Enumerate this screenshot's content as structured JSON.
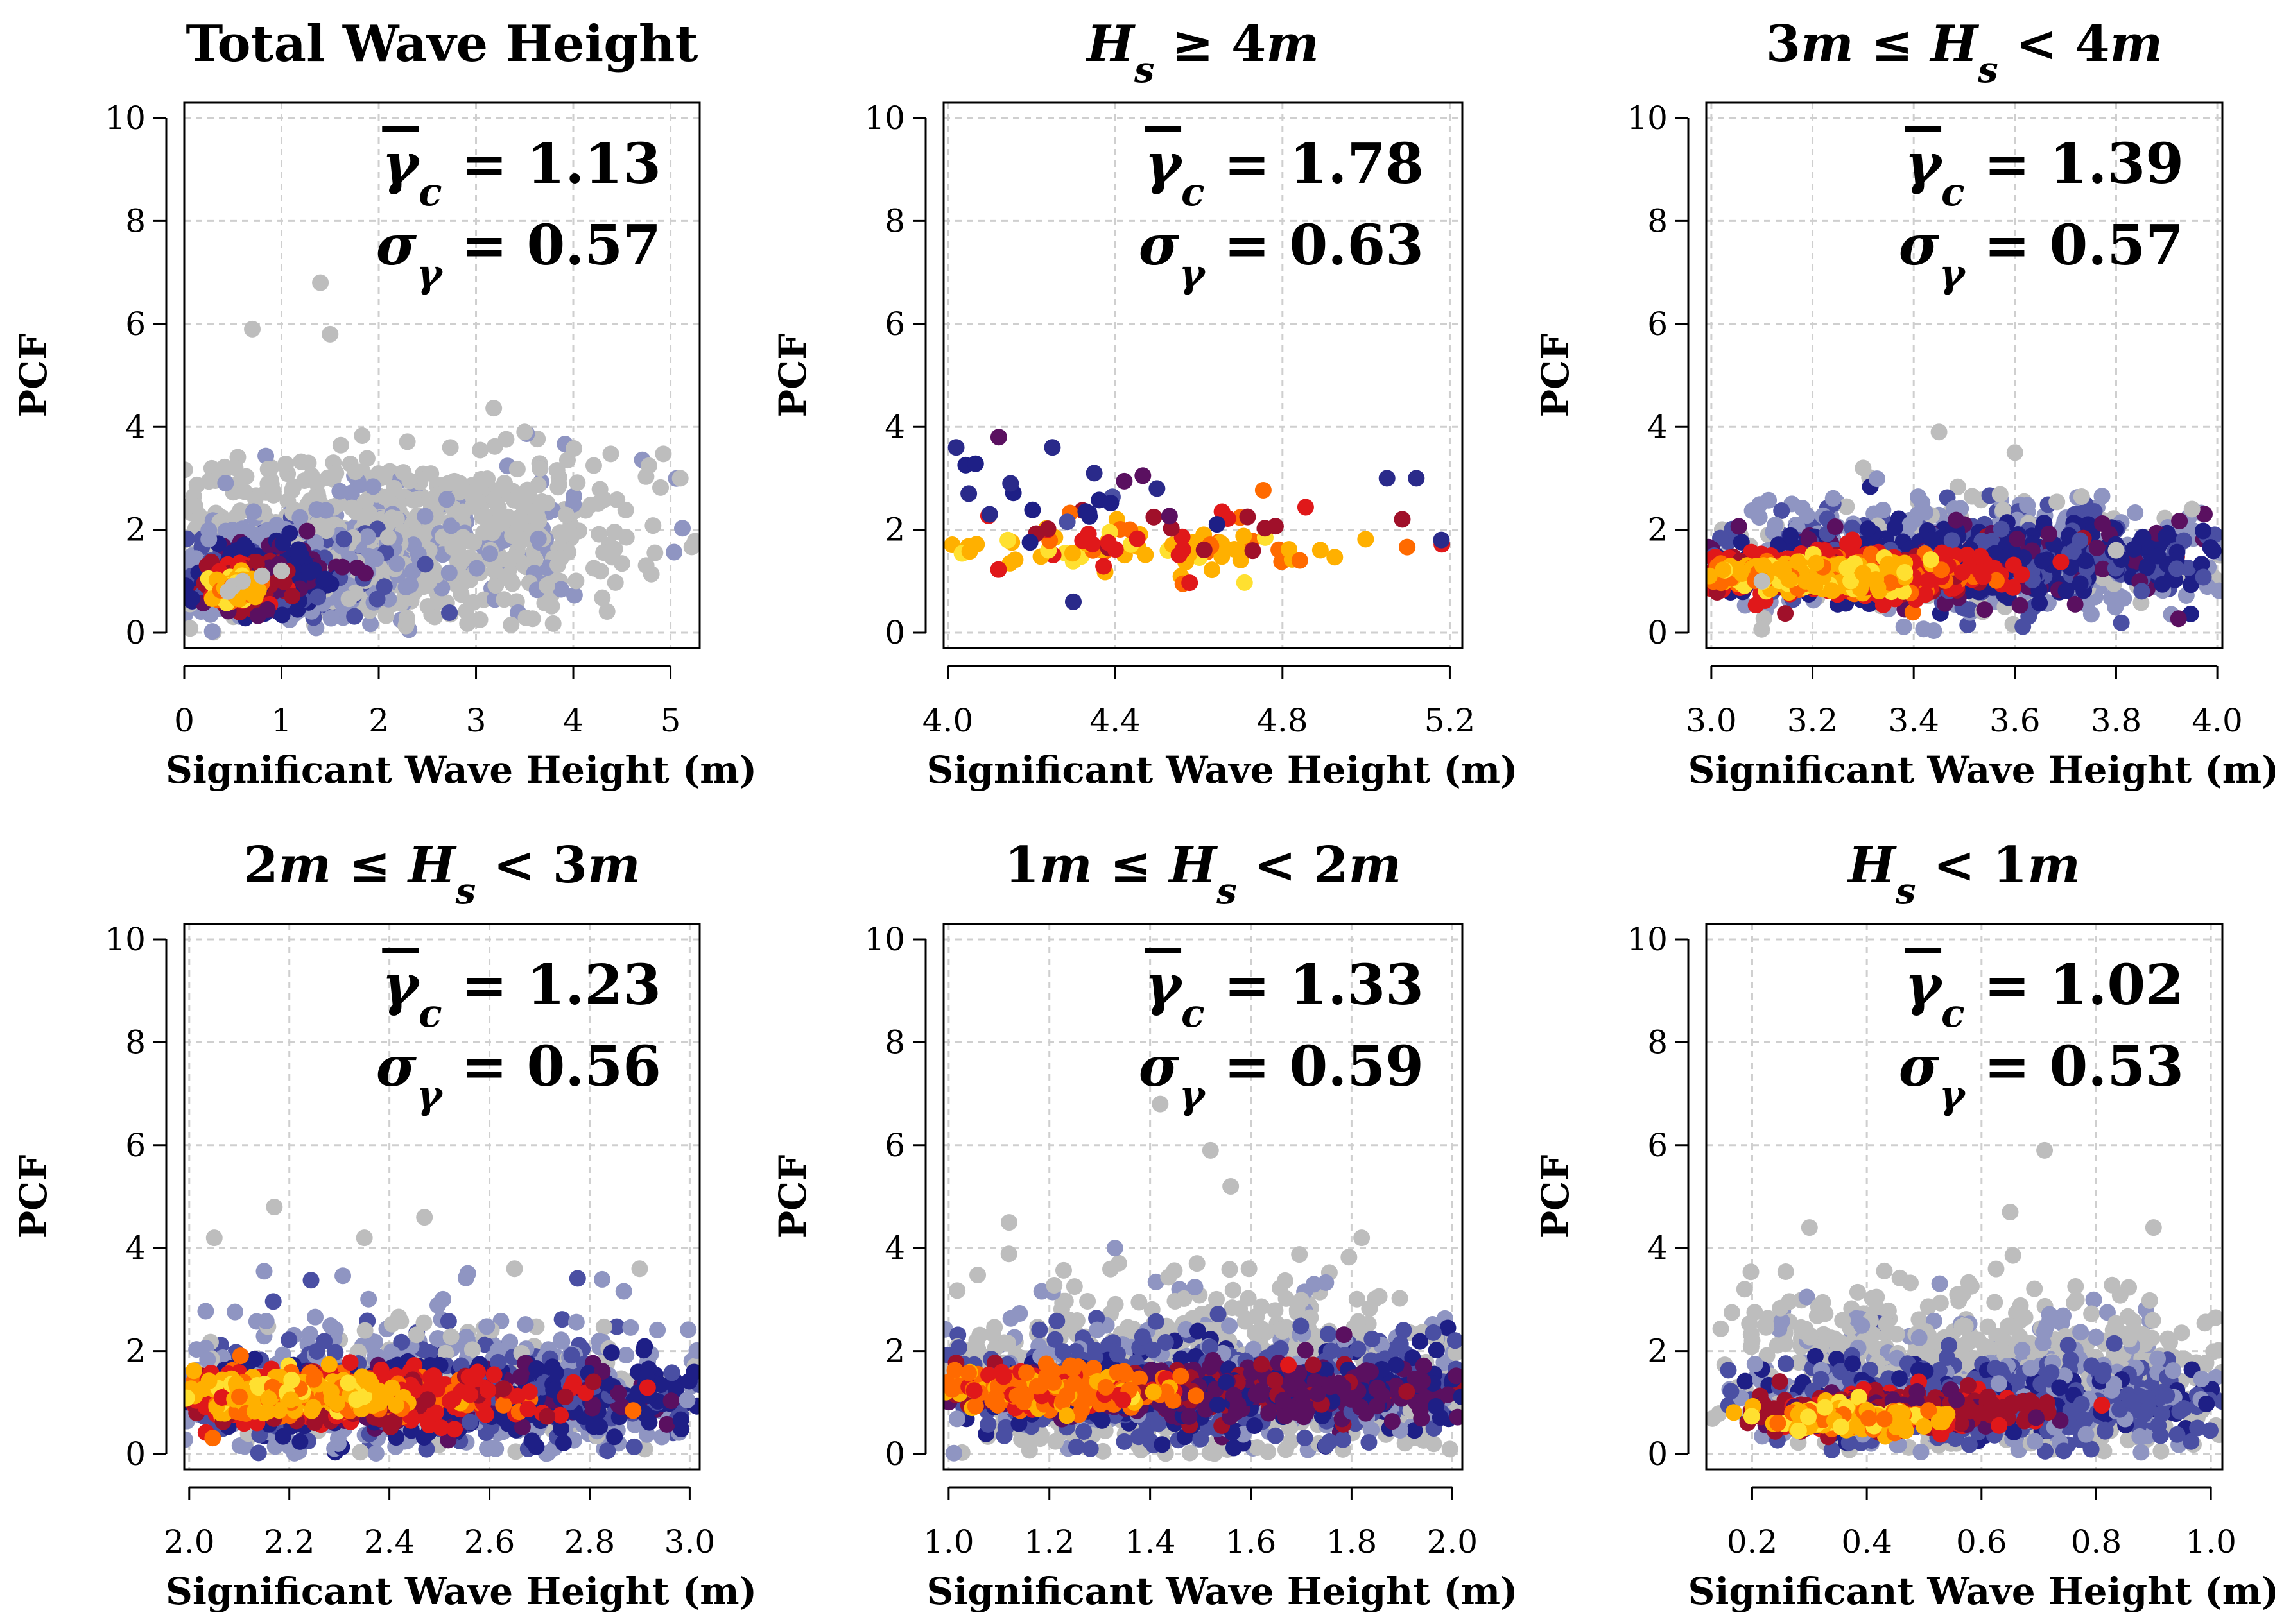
{
  "chart_data": [
    {
      "type": "scatter",
      "title": "Total Wave Height",
      "title_parts": [
        {
          "t": "Total Wave Height",
          "i": false
        }
      ],
      "xlabel": "Significant Wave Height (m)",
      "ylabel": "PCF",
      "xlim": [
        0,
        5.3
      ],
      "ylim": [
        -0.3,
        10.3
      ],
      "xticks": [
        0,
        1,
        2,
        3,
        4,
        5
      ],
      "xtick_labels": [
        "0",
        "1",
        "2",
        "3",
        "4",
        "5"
      ],
      "yticks": [
        0,
        2,
        4,
        6,
        8,
        10
      ],
      "ytick_labels": [
        "0",
        "2",
        "4",
        "6",
        "8",
        "10"
      ],
      "stat_mean_label": "γc̄ = 1.13",
      "mean": 1.13,
      "stat_sd_label": "σγ = 0.57",
      "sd": 0.57,
      "sample_points": [
        [
          0.45,
          0.8
        ],
        [
          0.5,
          0.9
        ],
        [
          0.6,
          1.0
        ],
        [
          0.8,
          1.1
        ],
        [
          1.0,
          1.2
        ],
        [
          1.4,
          6.8
        ],
        [
          1.5,
          5.8
        ],
        [
          0.7,
          5.9
        ],
        [
          3.5,
          3.9
        ],
        [
          5.1,
          3.0
        ]
      ]
    },
    {
      "type": "scatter",
      "title": "Hs ≥ 4m",
      "title_parts": [
        {
          "t": "H",
          "i": true
        },
        {
          "t": "s",
          "i": true,
          "sub": true
        },
        {
          "t": " ≥ 4",
          "i": false
        },
        {
          "t": "m",
          "i": true
        }
      ],
      "xlabel": "Significant Wave Height (m)",
      "ylabel": "PCF",
      "xlim": [
        3.99,
        5.23
      ],
      "ylim": [
        -0.3,
        10.3
      ],
      "xticks": [
        4.0,
        4.4,
        4.8,
        5.2
      ],
      "xtick_labels": [
        "4.0",
        "4.4",
        "4.8",
        "5.2"
      ],
      "yticks": [
        0,
        2,
        4,
        6,
        8,
        10
      ],
      "ytick_labels": [
        "0",
        "2",
        "4",
        "6",
        "8",
        "10"
      ],
      "stat_mean_label": "γc̄ = 1.78",
      "mean": 1.78,
      "stat_sd_label": "σγ = 0.63",
      "sd": 0.63,
      "sample_points": [
        [
          4.02,
          3.6
        ],
        [
          4.05,
          2.7
        ],
        [
          4.1,
          2.3
        ],
        [
          4.15,
          2.9
        ],
        [
          4.25,
          3.6
        ],
        [
          4.35,
          3.1
        ],
        [
          4.3,
          0.6
        ],
        [
          4.5,
          2.8
        ],
        [
          5.05,
          3.0
        ],
        [
          5.12,
          3.0
        ],
        [
          5.18,
          1.8
        ]
      ]
    },
    {
      "type": "scatter",
      "title": "3m ≤ Hs < 4m",
      "title_parts": [
        {
          "t": "3",
          "i": false
        },
        {
          "t": "m",
          "i": true
        },
        {
          "t": " ≤ ",
          "i": false
        },
        {
          "t": "H",
          "i": true
        },
        {
          "t": "s",
          "i": true,
          "sub": true
        },
        {
          "t": " < 4",
          "i": false
        },
        {
          "t": "m",
          "i": true
        }
      ],
      "xlabel": "Significant Wave Height (m)",
      "ylabel": "PCF",
      "xlim": [
        2.99,
        4.01
      ],
      "ylim": [
        -0.3,
        10.3
      ],
      "xticks": [
        3.0,
        3.2,
        3.4,
        3.6,
        3.8,
        4.0
      ],
      "xtick_labels": [
        "3.0",
        "3.2",
        "3.4",
        "3.6",
        "3.8",
        "4.0"
      ],
      "yticks": [
        0,
        2,
        4,
        6,
        8,
        10
      ],
      "ytick_labels": [
        "0",
        "2",
        "4",
        "6",
        "8",
        "10"
      ],
      "stat_mean_label": "γc̄ = 1.39",
      "mean": 1.39,
      "stat_sd_label": "σγ = 0.57",
      "sd": 0.57,
      "sample_points": [
        [
          3.45,
          3.9
        ],
        [
          3.6,
          3.5
        ],
        [
          3.3,
          3.2
        ],
        [
          3.95,
          2.4
        ],
        [
          3.1,
          1.0
        ],
        [
          3.8,
          1.6
        ]
      ]
    },
    {
      "type": "scatter",
      "title": "2m ≤ Hs < 3m",
      "title_parts": [
        {
          "t": "2",
          "i": false
        },
        {
          "t": "m",
          "i": true
        },
        {
          "t": " ≤ ",
          "i": false
        },
        {
          "t": "H",
          "i": true
        },
        {
          "t": "s",
          "i": true,
          "sub": true
        },
        {
          "t": " < 3",
          "i": false
        },
        {
          "t": "m",
          "i": true
        }
      ],
      "xlabel": "Significant Wave Height (m)",
      "ylabel": "PCF",
      "xlim": [
        1.99,
        3.02
      ],
      "ylim": [
        -0.3,
        10.3
      ],
      "xticks": [
        2.0,
        2.2,
        2.4,
        2.6,
        2.8,
        3.0
      ],
      "xtick_labels": [
        "2.0",
        "2.2",
        "2.4",
        "2.6",
        "2.8",
        "3.0"
      ],
      "yticks": [
        0,
        2,
        4,
        6,
        8,
        10
      ],
      "ytick_labels": [
        "0",
        "2",
        "4",
        "6",
        "8",
        "10"
      ],
      "stat_mean_label": "γc̄ = 1.23",
      "mean": 1.23,
      "stat_sd_label": "σγ = 0.56",
      "sd": 0.56,
      "sample_points": [
        [
          2.17,
          4.8
        ],
        [
          2.47,
          4.6
        ],
        [
          2.05,
          4.2
        ],
        [
          2.35,
          4.2
        ],
        [
          2.65,
          3.6
        ],
        [
          2.9,
          3.6
        ]
      ]
    },
    {
      "type": "scatter",
      "title": "1m ≤ Hs < 2m",
      "title_parts": [
        {
          "t": "1",
          "i": false
        },
        {
          "t": "m",
          "i": true
        },
        {
          "t": " ≤ ",
          "i": false
        },
        {
          "t": "H",
          "i": true
        },
        {
          "t": "s",
          "i": true,
          "sub": true
        },
        {
          "t": " < 2",
          "i": false
        },
        {
          "t": "m",
          "i": true
        }
      ],
      "xlabel": "Significant Wave Height (m)",
      "ylabel": "PCF",
      "xlim": [
        0.99,
        2.02
      ],
      "ylim": [
        -0.3,
        10.3
      ],
      "xticks": [
        1.0,
        1.2,
        1.4,
        1.6,
        1.8,
        2.0
      ],
      "xtick_labels": [
        "1.0",
        "1.2",
        "1.4",
        "1.6",
        "1.8",
        "2.0"
      ],
      "yticks": [
        0,
        2,
        4,
        6,
        8,
        10
      ],
      "ytick_labels": [
        "0",
        "2",
        "4",
        "6",
        "8",
        "10"
      ],
      "stat_mean_label": "γc̄ = 1.33",
      "mean": 1.33,
      "stat_sd_label": "σγ = 0.59",
      "sd": 0.59,
      "sample_points": [
        [
          1.42,
          6.8
        ],
        [
          1.52,
          5.9
        ],
        [
          1.56,
          5.2
        ],
        [
          1.82,
          4.2
        ],
        [
          1.12,
          4.5
        ]
      ]
    },
    {
      "type": "scatter",
      "title": "Hs < 1m",
      "title_parts": [
        {
          "t": "H",
          "i": true
        },
        {
          "t": "s",
          "i": true,
          "sub": true
        },
        {
          "t": " < 1",
          "i": false
        },
        {
          "t": "m",
          "i": true
        }
      ],
      "xlabel": "Significant Wave Height (m)",
      "ylabel": "PCF",
      "xlim": [
        0.12,
        1.02
      ],
      "ylim": [
        -0.3,
        10.3
      ],
      "xticks": [
        0.2,
        0.4,
        0.6,
        0.8,
        1.0
      ],
      "xtick_labels": [
        "0.2",
        "0.4",
        "0.6",
        "0.8",
        "1.0"
      ],
      "yticks": [
        0,
        2,
        4,
        6,
        8,
        10
      ],
      "ytick_labels": [
        "0",
        "2",
        "4",
        "6",
        "8",
        "10"
      ],
      "stat_mean_label": "γc̄ = 1.02",
      "mean": 1.02,
      "stat_sd_label": "σγ = 0.53",
      "sd": 0.53,
      "sample_points": [
        [
          0.71,
          5.9
        ],
        [
          0.65,
          4.7
        ],
        [
          0.9,
          4.4
        ],
        [
          0.3,
          4.4
        ],
        [
          0.2,
          2.2
        ]
      ]
    }
  ]
}
